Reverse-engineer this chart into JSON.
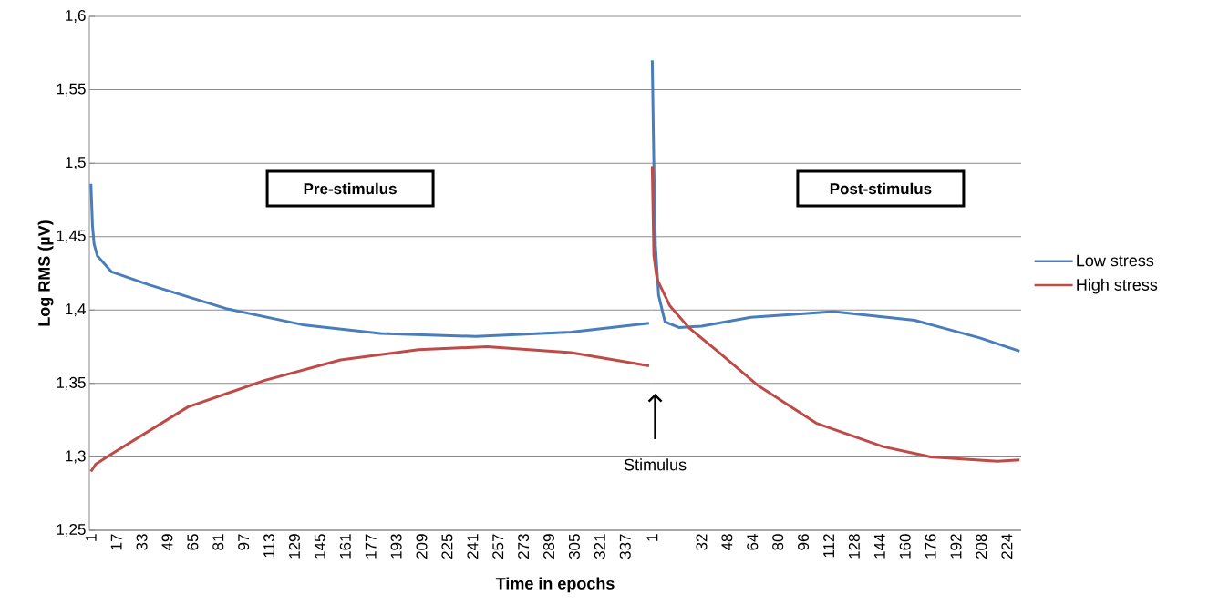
{
  "chart_data": [
    {
      "type": "line",
      "xlabel": "Time in epochs",
      "ylabel": "Log RMS (µV)",
      "xlim": [
        0,
        353.5
      ],
      "ylim": [
        1.25,
        1.6
      ],
      "xticks": [
        1,
        17,
        33,
        49,
        65,
        81,
        97,
        113,
        129,
        145,
        161,
        177,
        193,
        209,
        225,
        241,
        257,
        273,
        289,
        305,
        321,
        337
      ],
      "yticks": [
        {
          "value": 1.25,
          "label": "1,25"
        },
        {
          "value": 1.3,
          "label": "1,3"
        },
        {
          "value": 1.35,
          "label": "1,35"
        },
        {
          "value": 1.4,
          "label": "1,4"
        },
        {
          "value": 1.45,
          "label": "1,45"
        },
        {
          "value": 1.5,
          "label": "1,5"
        },
        {
          "value": 1.55,
          "label": "1,55"
        },
        {
          "value": 1.6,
          "label": "1,6"
        }
      ],
      "grid": "y",
      "series": [
        {
          "color": "#4a7ebb",
          "x": [
            1,
            2,
            3,
            5,
            14,
            38,
            86,
            134,
            183,
            243,
            303,
            352
          ],
          "values": [
            1.486,
            1.457,
            1.445,
            1.437,
            1.426,
            1.417,
            1.401,
            1.39,
            1.384,
            1.382,
            1.385,
            1.391
          ]
        },
        {
          "color": "#be4b48",
          "x": [
            1,
            4,
            14,
            62,
            110,
            158,
            207,
            250,
            303,
            352
          ],
          "values": [
            1.29,
            1.295,
            1.302,
            1.334,
            1.352,
            1.366,
            1.373,
            1.375,
            1.371,
            1.362
          ]
        }
      ],
      "annotations": [
        "Pre-stimulus"
      ]
    },
    {
      "type": "line",
      "xlim": [
        0.5,
        233
      ],
      "ylim": [
        1.25,
        1.6
      ],
      "xticks": [
        1,
        32,
        48,
        64,
        80,
        96,
        112,
        128,
        144,
        160,
        176,
        192,
        208,
        224
      ],
      "yticks": [
        1.25,
        1.3,
        1.35,
        1.4,
        1.45,
        1.5,
        1.55,
        1.6
      ],
      "tick_labels": "x",
      "grid": "y",
      "legend": "right",
      "series": [
        {
          "name": "Low stress",
          "color": "#4a7ebb",
          "x": [
            1,
            2,
            3,
            5,
            9,
            18,
            32,
            63,
            115,
            166,
            207,
            232
          ],
          "values": [
            1.57,
            1.5,
            1.444,
            1.41,
            1.392,
            1.388,
            1.389,
            1.395,
            1.399,
            1.393,
            1.381,
            1.372
          ]
        },
        {
          "name": "High stress",
          "color": "#be4b48",
          "x": [
            1,
            2,
            4,
            12,
            24,
            42,
            67,
            104,
            146,
            176,
            218,
            232
          ],
          "values": [
            1.498,
            1.437,
            1.421,
            1.403,
            1.388,
            1.372,
            1.349,
            1.323,
            1.307,
            1.3,
            1.297,
            1.298
          ]
        }
      ],
      "annotations": [
        "Post-stimulus",
        "Stimulus"
      ]
    }
  ]
}
